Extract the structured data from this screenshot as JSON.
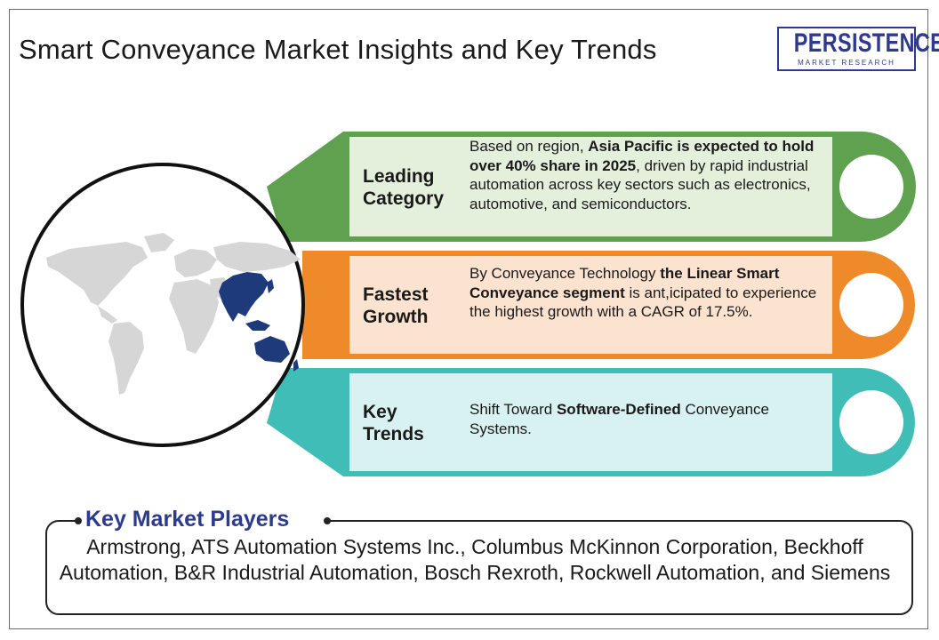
{
  "title": "Smart Conveyance Market Insights and Key Trends",
  "logo": {
    "name": "PERSISTENCE",
    "tagline": "MARKET RESEARCH",
    "color": "#2e3a8c"
  },
  "categories": [
    {
      "label_line1": "Leading",
      "label_line2": "Category",
      "text_parts": [
        {
          "t": "Based on region, ",
          "b": false
        },
        {
          "t": "Asia Pacific is expected to hold over 40% share in 2025",
          "b": true
        },
        {
          "t": ", driven by rapid industrial automation across key sectors such as electronics, automotive, and semiconductors.",
          "b": false
        }
      ],
      "color": "#5fa14e",
      "fill": "#e4f0dc"
    },
    {
      "label_line1": "Fastest",
      "label_line2": "Growth",
      "text_parts": [
        {
          "t": "By Conveyance Technology ",
          "b": false
        },
        {
          "t": "the Linear Smart Conveyance segment",
          "b": true
        },
        {
          "t": " is ant,icipated to experience the highest growth with a CAGR of 17.5%.",
          "b": false
        }
      ],
      "color": "#ee8a2a",
      "fill": "#fce3cf"
    },
    {
      "label_line1": "Key",
      "label_line2": "Trends",
      "text_parts": [
        {
          "t": "Shift Toward ",
          "b": false
        },
        {
          "t": "Software-Defined",
          "b": true
        },
        {
          "t": " Conveyance Systems.",
          "b": false
        }
      ],
      "color": "#3fbdb6",
      "fill": "#d8f1f1"
    }
  ],
  "map": {
    "highlight_region": "Asia Pacific",
    "highlight_color": "#1f3a7a",
    "land_color": "#d6d6d6"
  },
  "players": {
    "title": "Key Market Players",
    "text": "Armstrong, ATS Automation Systems Inc., Columbus McKinnon Corporation, Beckhoff Automation, B&R Industrial Automation, Bosch Rexroth, Rockwell Automation, and Siemens"
  }
}
